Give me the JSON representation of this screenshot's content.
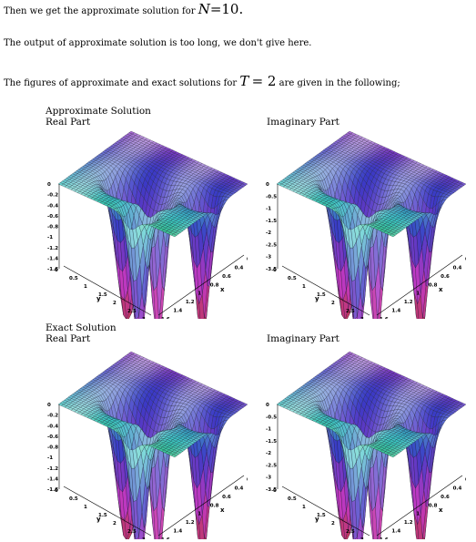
{
  "text": {
    "line1_pre": "Then we get the approximate solution for",
    "line1_var": "N",
    "line1_eq": "=10.",
    "line2": "The output of approximate solution is too long, we don't give here.",
    "line3_pre": "The figures of approximate and exact solutions for",
    "line3_var": "T",
    "line3_eq": "= 2",
    "line3_post": "are given in the following;"
  },
  "labels": {
    "approx": "Approximate Solution",
    "exact": "Exact Solution",
    "real": "Real Part",
    "imag": "Imaginary Part"
  },
  "chart_data": [
    {
      "type": "surface3d",
      "z_ticks": [
        "0",
        "-0.2",
        "-0.4",
        "-0.6",
        "-0.8",
        "-1",
        "-1.2",
        "-1.4",
        "-1.6"
      ],
      "y_ticks": [
        "0",
        "0.5",
        "1",
        "1.5",
        "2",
        "2.5",
        "3"
      ],
      "x_ticks": [
        "0.2",
        "0.4",
        "0.6",
        "0.8",
        "1",
        "1.2",
        "1.4",
        "1.6"
      ],
      "x_label": "x",
      "y_label": "y",
      "zmin": -1.7
    },
    {
      "type": "surface3d",
      "z_ticks": [
        "0",
        "-0.5",
        "-1",
        "-1.5",
        "-2",
        "-2.5",
        "-3",
        "-3.5"
      ],
      "y_ticks": [
        "0",
        "0.5",
        "1",
        "1.5",
        "2",
        "2.5",
        "3"
      ],
      "x_ticks": [
        "0.2",
        "0.4",
        "0.6",
        "0.8",
        "1",
        "1.2",
        "1.4",
        "1.6"
      ],
      "x_label": "x",
      "y_label": "y",
      "zmin": -3.6
    },
    {
      "type": "surface3d",
      "z_ticks": [
        "0",
        "-0.2",
        "-0.4",
        "-0.6",
        "-0.8",
        "-1",
        "-1.2",
        "-1.4",
        "-1.6"
      ],
      "y_ticks": [
        "0",
        "0.5",
        "1",
        "1.5",
        "2",
        "2.5",
        "3"
      ],
      "x_ticks": [
        "0.2",
        "0.4",
        "0.6",
        "0.8",
        "1",
        "1.2",
        "1.4",
        "1.6"
      ],
      "x_label": "x",
      "y_label": "y",
      "zmin": -1.7
    },
    {
      "type": "surface3d",
      "z_ticks": [
        "0",
        "-0.5",
        "-1",
        "-1.5",
        "-2",
        "-2.5",
        "-3",
        "-3.5"
      ],
      "y_ticks": [
        "0",
        "0.5",
        "1",
        "1.5",
        "2",
        "2.5",
        "3"
      ],
      "x_ticks": [
        "0.2",
        "0.4",
        "0.6",
        "0.8",
        "1",
        "1.2",
        "1.4",
        "1.6"
      ],
      "x_label": "x",
      "y_label": "y",
      "zmin": -3.6
    }
  ]
}
